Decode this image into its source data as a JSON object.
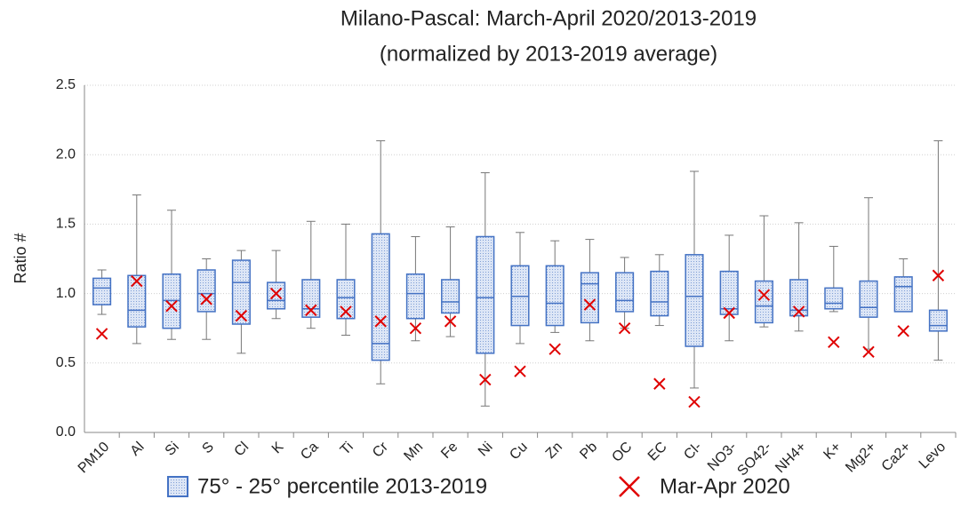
{
  "chart_data": {
    "type": "box",
    "title": "Milano-Pascal: March-April 2020/2013-2019",
    "subtitle": "(normalized by 2013-2019 average)",
    "y_label": "Ratio #",
    "categories": [
      "PM10",
      "Al",
      "Si",
      "S",
      "Cl",
      "K",
      "Ca",
      "Ti",
      "Cr",
      "Mn",
      "Fe",
      "Ni",
      "Cu",
      "Zn",
      "Pb",
      "OC",
      "EC",
      "Cl-",
      "NO3-",
      "SO42-",
      "NH4+",
      "K+",
      "Mg2+",
      "Ca2+",
      "Levo"
    ],
    "ylim": [
      0,
      2.5
    ],
    "yticks": [
      {
        "value": 0,
        "label": "0.0"
      },
      0.5,
      {
        "value": 1,
        "label": "1.0"
      },
      1.5,
      {
        "value": 2,
        "label": "2.0"
      },
      2.5
    ],
    "grid": true,
    "series": [
      {
        "name": "75° - 25° percentile 2013-2019",
        "color": "#4472c4",
        "min": [
          0.85,
          0.64,
          0.67,
          0.67,
          0.57,
          0.82,
          0.75,
          0.7,
          0.35,
          0.66,
          0.69,
          0.19,
          0.64,
          0.72,
          0.66,
          0.75,
          0.77,
          0.32,
          0.66,
          0.76,
          0.73,
          0.87,
          0.6,
          0.87,
          0.52
        ],
        "q1": [
          0.92,
          0.76,
          0.75,
          0.87,
          0.78,
          0.89,
          0.83,
          0.82,
          0.52,
          0.82,
          0.86,
          0.57,
          0.77,
          0.77,
          0.79,
          0.87,
          0.84,
          0.62,
          0.85,
          0.79,
          0.84,
          0.89,
          0.83,
          0.87,
          0.73
        ],
        "median": [
          1.04,
          0.88,
          0.95,
          1.0,
          1.08,
          0.95,
          0.89,
          0.97,
          0.64,
          1.0,
          0.94,
          0.97,
          0.98,
          0.93,
          1.07,
          0.95,
          0.94,
          0.98,
          0.89,
          0.91,
          0.88,
          0.93,
          0.9,
          1.05,
          0.77
        ],
        "q3": [
          1.11,
          1.13,
          1.14,
          1.17,
          1.24,
          1.08,
          1.1,
          1.1,
          1.43,
          1.14,
          1.1,
          1.41,
          1.2,
          1.2,
          1.15,
          1.15,
          1.16,
          1.28,
          1.16,
          1.09,
          1.1,
          1.04,
          1.09,
          1.12,
          0.88
        ],
        "max": [
          1.17,
          1.71,
          1.6,
          1.25,
          1.31,
          1.31,
          1.52,
          1.5,
          2.1,
          1.41,
          1.48,
          1.87,
          1.44,
          1.38,
          1.39,
          1.26,
          1.28,
          1.88,
          1.42,
          1.56,
          1.51,
          1.34,
          1.69,
          1.25,
          2.1
        ]
      },
      {
        "name": "Mar-Apr 2020",
        "color": "#e00000",
        "values": [
          0.71,
          1.09,
          0.91,
          0.96,
          0.84,
          1.0,
          0.88,
          0.87,
          0.8,
          0.75,
          0.8,
          0.38,
          0.44,
          0.6,
          0.92,
          0.75,
          0.35,
          0.22,
          0.86,
          0.99,
          0.87,
          0.65,
          0.58,
          0.73,
          1.13
        ]
      }
    ]
  }
}
